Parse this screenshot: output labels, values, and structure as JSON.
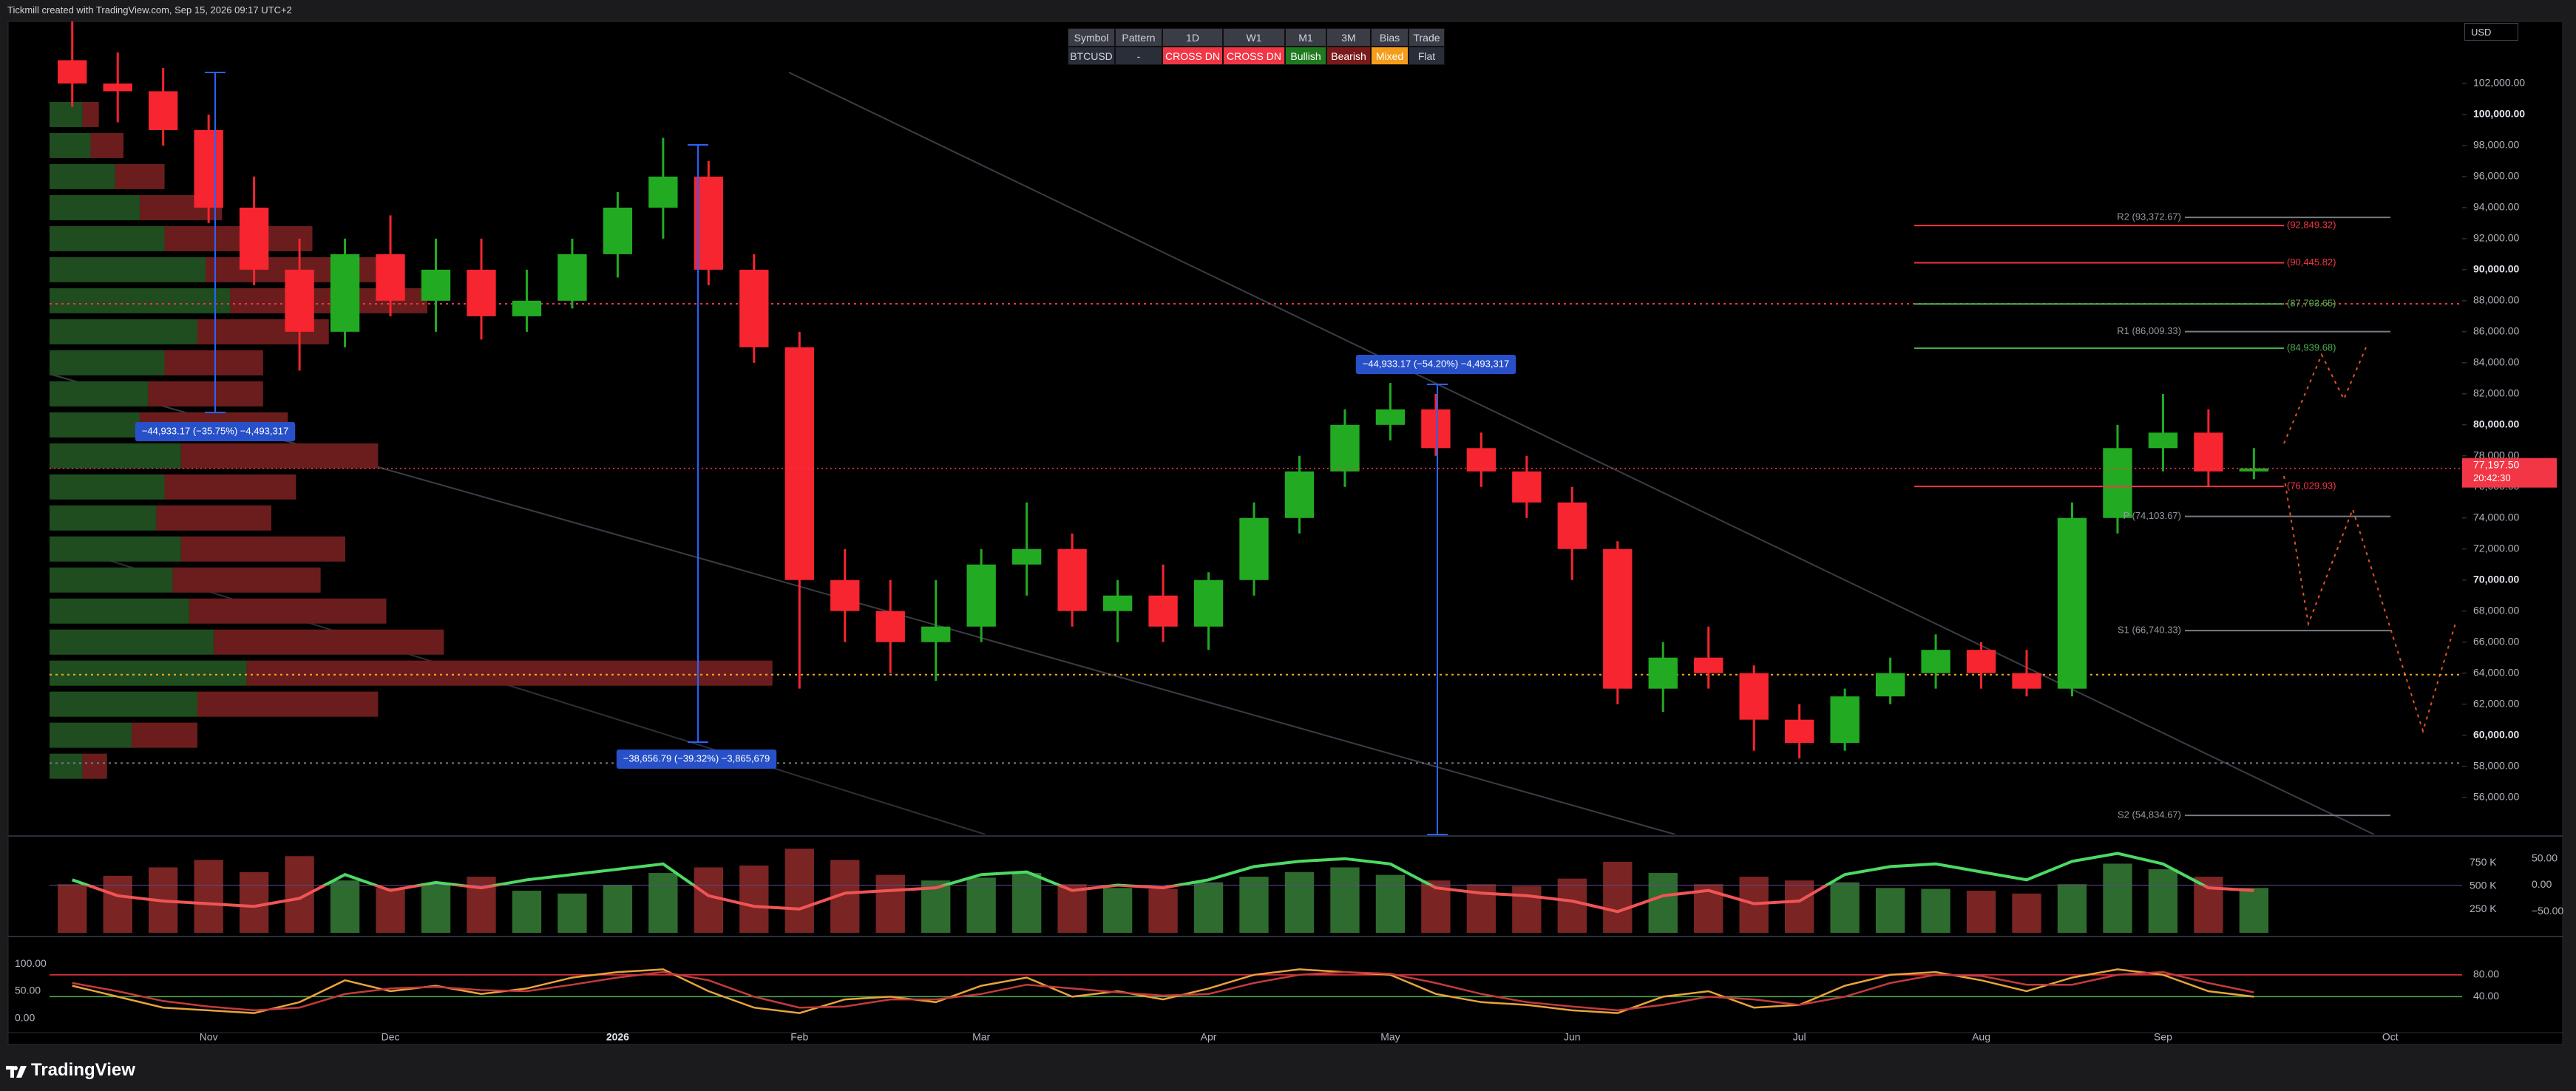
{
  "header": "Tickmill created with TradingView.com, Sep 15, 2026 09:17 UTC+2",
  "currency": "USD",
  "brand": "TradingView",
  "signal_table": {
    "columns": [
      "Symbol",
      "Pattern",
      "1D",
      "W1",
      "M1",
      "3M",
      "Bias",
      "Trade"
    ],
    "rows": [
      [
        "BTCUSD",
        "-",
        "CROSS DN",
        "CROSS DN",
        "Bullish",
        "Bearish",
        "Mixed",
        "Flat"
      ]
    ]
  },
  "chart_data": [
    {
      "type": "candlestick",
      "categories": [
        null,
        null,
        null,
        "Nov",
        null,
        null,
        null,
        "Dec",
        null,
        null,
        null,
        null,
        "2026",
        null,
        null,
        null,
        "Feb",
        null,
        null,
        null,
        "Mar",
        null,
        null,
        null,
        null,
        "Apr",
        null,
        null,
        null,
        "May",
        null,
        null,
        null,
        "Jun",
        null,
        null,
        null,
        null,
        "Jul",
        null,
        null,
        null,
        "Aug",
        null,
        null,
        null,
        "Sep",
        null,
        null,
        null,
        null,
        "Oct",
        null
      ],
      "open": [
        103500,
        102000,
        101500,
        99000,
        94000,
        90000,
        86000,
        91000,
        88000,
        90000,
        87000,
        88000,
        91000,
        94000,
        96000,
        90000,
        85000,
        70000,
        68000,
        66000,
        67000,
        71000,
        72000,
        68000,
        69000,
        67000,
        70000,
        74000,
        77000,
        80000,
        81000,
        78500,
        77000,
        75000,
        72000,
        63000,
        65000,
        64000,
        61000,
        59500,
        62500,
        64000,
        65500,
        64000,
        63000,
        74000,
        78500,
        79500,
        77000,
        null,
        null,
        null,
        null
      ],
      "high": [
        106000,
        104000,
        103000,
        100000,
        96000,
        92000,
        92000,
        93500,
        92000,
        92000,
        90000,
        92000,
        95000,
        98500,
        97000,
        91000,
        86000,
        72000,
        70000,
        70000,
        72000,
        75000,
        73000,
        70000,
        71000,
        70500,
        75000,
        78000,
        81000,
        82700,
        82000,
        79500,
        78000,
        76000,
        72500,
        66000,
        67000,
        64500,
        62000,
        63000,
        65000,
        66500,
        66000,
        65500,
        75000,
        80000,
        82000,
        81000,
        78500,
        null,
        null,
        null,
        null
      ],
      "low": [
        100500,
        99500,
        98000,
        93000,
        89000,
        83500,
        85000,
        87000,
        86000,
        85500,
        86000,
        87500,
        89500,
        92000,
        89000,
        84000,
        63000,
        66000,
        64000,
        63500,
        66000,
        69000,
        67000,
        66000,
        66000,
        65500,
        69000,
        73000,
        76000,
        79000,
        78000,
        76000,
        74000,
        70000,
        62000,
        61500,
        63000,
        59000,
        58500,
        59000,
        62000,
        63000,
        63000,
        62500,
        62500,
        73000,
        77000,
        76000,
        76500,
        null,
        null,
        null,
        null
      ],
      "close": [
        102000,
        101500,
        99000,
        94000,
        90000,
        86000,
        91000,
        88000,
        90000,
        87000,
        88000,
        91000,
        94000,
        96000,
        90000,
        85000,
        70000,
        68000,
        66000,
        67000,
        71000,
        72000,
        68000,
        69000,
        67000,
        70000,
        74000,
        77000,
        80000,
        81000,
        78500,
        77000,
        75000,
        72000,
        63000,
        65000,
        64000,
        61000,
        59500,
        62500,
        64000,
        65500,
        64000,
        63000,
        74000,
        78500,
        79500,
        77000,
        77197.5,
        null,
        null,
        null,
        null
      ],
      "up_color": "#22ab22",
      "down_color": "#f7252f",
      "ylim": [
        53600,
        106000
      ],
      "yticks": [
        {
          "value": 56000,
          "label": "56,000.00"
        },
        {
          "value": 58000,
          "label": "58,000.00"
        },
        {
          "value": 60000,
          "label": "60,000.00"
        },
        {
          "value": 62000,
          "label": "62,000.00"
        },
        {
          "value": 64000,
          "label": "64,000.00"
        },
        {
          "value": 66000,
          "label": "66,000.00"
        },
        {
          "value": 68000,
          "label": "68,000.00"
        },
        {
          "value": 70000,
          "label": "70,000.00"
        },
        {
          "value": 72000,
          "label": "72,000.00"
        },
        {
          "value": 74000,
          "label": "74,000.00"
        },
        {
          "value": 76000,
          "label": "76,000.00"
        },
        {
          "value": 78000,
          "label": "78,000.00"
        },
        {
          "value": 80000,
          "label": "80,000.00"
        },
        {
          "value": 82000,
          "label": "82,000.00"
        },
        {
          "value": 84000,
          "label": "84,000.00"
        },
        {
          "value": 86000,
          "label": "86,000.00"
        },
        {
          "value": 88000,
          "label": "88,000.00"
        },
        {
          "value": 90000,
          "label": "90,000.00"
        },
        {
          "value": 92000,
          "label": "92,000.00"
        },
        {
          "value": 94000,
          "label": "94,000.00"
        },
        {
          "value": 96000,
          "label": "96,000.00"
        },
        {
          "value": 98000,
          "label": "98,000.00"
        },
        {
          "value": 100000,
          "label": "100,000.00"
        },
        {
          "value": 102000,
          "label": "102,000.00"
        }
      ],
      "grid": false,
      "last_price": {
        "value": 77197.5,
        "label": "77,197.50"
      },
      "countdown": "20:42:30",
      "last_color": "#f23645",
      "levels": [
        {
          "label": "(92,849.32)",
          "value": 92849.32,
          "color": "#f23645"
        },
        {
          "label": "(90,445.82)",
          "value": 90445.82,
          "color": "#f23645"
        },
        {
          "label": "(87,793.65)",
          "value": 87793.65,
          "color": "#4caf50"
        },
        {
          "label": "(84,939.68)",
          "value": 84939.68,
          "color": "#4caf50"
        },
        {
          "label": "(76,029.93)",
          "value": 76029.93,
          "color": "#f23645"
        }
      ],
      "pivots": [
        {
          "label": "R2 (93,372.67)",
          "value": 93372.67
        },
        {
          "label": "R1 (86,009.33)",
          "value": 86009.33
        },
        {
          "label": "P (74,103.67)",
          "value": 74103.67
        },
        {
          "label": "S1 (66,740.33)",
          "value": 66740.33
        },
        {
          "label": "S2 (54,834.67)",
          "value": 54834.67
        }
      ],
      "hlines": [
        {
          "value": 87800,
          "color": "#f23645"
        },
        {
          "value": 63900,
          "color": "#f5a623"
        },
        {
          "value": 58200,
          "color": "#787b86"
        }
      ],
      "measures": [
        {
          "label": "−44,933.17 (−35.75%) −4,493,317"
        },
        {
          "label": "−38,656.79 (−39.32%) −3,865,679"
        },
        {
          "label": "−44,933.17 (−54.20%) −4,493,317"
        }
      ],
      "volume_profile": {
        "prices": [
          100000,
          98000,
          96000,
          94000,
          92000,
          90000,
          88000,
          86000,
          84000,
          82000,
          80000,
          78000,
          76000,
          74000,
          72000,
          70000,
          68000,
          66000,
          64000,
          62000,
          60000,
          58000
        ],
        "buy": [
          20,
          25,
          40,
          55,
          70,
          95,
          110,
          90,
          70,
          60,
          55,
          80,
          70,
          65,
          80,
          75,
          85,
          100,
          120,
          90,
          50,
          20
        ],
        "sell": [
          10,
          20,
          30,
          50,
          90,
          110,
          120,
          80,
          60,
          70,
          90,
          120,
          80,
          70,
          100,
          90,
          120,
          140,
          320,
          110,
          40,
          15
        ],
        "buy_color": "#1f4d1f",
        "sell_color": "#6b1d1d"
      }
    },
    {
      "type": "bar",
      "values": [
        520000,
        610000,
        700000,
        780000,
        650000,
        820000,
        560000,
        480000,
        530000,
        600000,
        450000,
        420000,
        510000,
        640000,
        700000,
        720000,
        900000,
        780000,
        620000,
        560000,
        590000,
        640000,
        520000,
        480000,
        470000,
        540000,
        600000,
        650000,
        700000,
        620000,
        560000,
        520000,
        500000,
        580000,
        760000,
        640000,
        520000,
        600000,
        560000,
        540000,
        480000,
        470000,
        450000,
        420000,
        520000,
        740000,
        680000,
        600000,
        480000,
        null,
        null,
        null,
        null
      ],
      "up_color": "#2e6b2e",
      "down_color": "#7a2424",
      "ylim": [
        0,
        1020000
      ],
      "yticks": [
        {
          "value": 250000,
          "label": "250 K"
        },
        {
          "value": 500000,
          "label": "500 K"
        },
        {
          "value": 750000,
          "label": "750 K"
        }
      ],
      "series": [
        {
          "axis": "y2",
          "color": "#4cd964",
          "down_color": "#f05454",
          "values": [
            10,
            -20,
            -30,
            -35,
            -40,
            -25,
            20,
            -10,
            5,
            -5,
            10,
            20,
            30,
            40,
            -20,
            -40,
            -45,
            -15,
            -10,
            -5,
            20,
            25,
            -10,
            0,
            -5,
            10,
            35,
            45,
            50,
            40,
            -5,
            -15,
            -20,
            -30,
            -50,
            -20,
            -10,
            -35,
            -30,
            20,
            35,
            40,
            25,
            10,
            45,
            60,
            40,
            -5,
            -10,
            null,
            null,
            null,
            null
          ]
        }
      ],
      "y2lim": [
        -90,
        90
      ],
      "y2ticks": [
        {
          "value": 50,
          "label": "50.00"
        },
        {
          "value": 0,
          "label": "0.00"
        },
        {
          "value": -50,
          "label": "−50.00"
        }
      ]
    },
    {
      "type": "line",
      "series": [
        {
          "color": "#e8a33c",
          "values": [
            60,
            40,
            20,
            15,
            10,
            30,
            70,
            50,
            60,
            45,
            55,
            75,
            85,
            90,
            50,
            20,
            10,
            35,
            40,
            30,
            60,
            75,
            40,
            50,
            35,
            55,
            80,
            90,
            85,
            80,
            45,
            30,
            25,
            15,
            10,
            40,
            50,
            20,
            25,
            60,
            80,
            85,
            70,
            50,
            75,
            90,
            80,
            50,
            40,
            null,
            null,
            null,
            null
          ]
        },
        {
          "color": "#c23b3b",
          "values": [
            65,
            50,
            32,
            22,
            15,
            20,
            45,
            55,
            58,
            52,
            50,
            62,
            75,
            85,
            70,
            40,
            20,
            22,
            35,
            35,
            45,
            62,
            55,
            48,
            42,
            45,
            65,
            80,
            85,
            82,
            65,
            45,
            30,
            22,
            15,
            25,
            40,
            35,
            25,
            40,
            65,
            80,
            78,
            62,
            62,
            80,
            85,
            65,
            48,
            null,
            null,
            null,
            null
          ]
        }
      ],
      "ylim": [
        -23,
        142
      ],
      "yticks": [
        {
          "value": 100,
          "label": "100.00"
        },
        {
          "value": 50,
          "label": "50.00"
        },
        {
          "value": 0,
          "label": "0.00"
        }
      ],
      "levels": [
        {
          "value": 80,
          "label": "80.00"
        },
        {
          "value": 40,
          "label": "40.00"
        }
      ]
    }
  ]
}
